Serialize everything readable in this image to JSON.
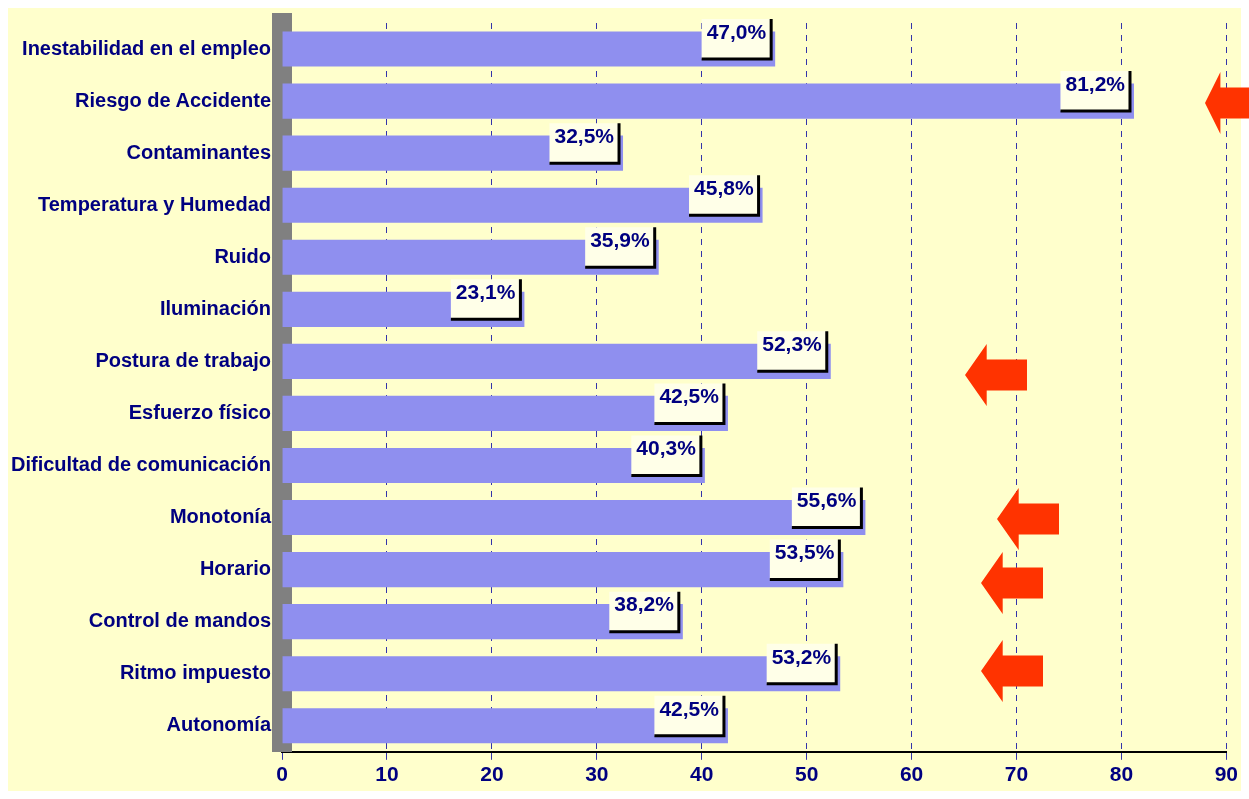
{
  "chart_data": {
    "type": "bar",
    "orientation": "horizontal",
    "categories": [
      "Inestabilidad en el empleo",
      "Riesgo de Accidente",
      "Contaminantes",
      "Temperatura y Humedad",
      "Ruido",
      "Iluminación",
      "Postura de trabajo",
      "Esfuerzo físico",
      "Dificultad de comunicación",
      "Monotonía",
      "Horario",
      "Control de mandos",
      "Ritmo impuesto",
      "Autonomía"
    ],
    "values": [
      47.0,
      81.2,
      32.5,
      45.8,
      35.9,
      23.1,
      52.3,
      42.5,
      40.3,
      55.6,
      53.5,
      38.2,
      53.2,
      42.5
    ],
    "value_labels": [
      "47,0%",
      "81,2%",
      "32,5%",
      "45,8%",
      "35,9%",
      "23,1%",
      "52,3%",
      "42,5%",
      "40,3%",
      "55,6%",
      "53,5%",
      "38,2%",
      "53,2%",
      "42,5%"
    ],
    "color": "#8f8fef",
    "xlim": [
      0,
      90
    ],
    "xticks": [
      0,
      10,
      20,
      30,
      40,
      50,
      60,
      70,
      80,
      90
    ],
    "grid": "x",
    "legend": false
  }
}
